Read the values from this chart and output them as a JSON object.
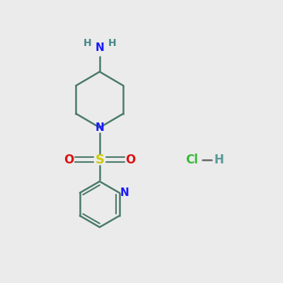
{
  "background_color": "#ebebeb",
  "bond_color": "#4a7a6a",
  "N_color": "#1a1aff",
  "O_color": "#dd1111",
  "S_color": "#cccc00",
  "NH2_N_color": "#1a1aff",
  "NH2_H_color": "#4a8888",
  "Cl_color": "#33bb33",
  "H_color": "#5a9999",
  "line_width": 1.8,
  "figsize": [
    4.0,
    4.0
  ],
  "dpi": 100,
  "xlim": [
    0,
    10
  ],
  "ylim": [
    0,
    10
  ]
}
